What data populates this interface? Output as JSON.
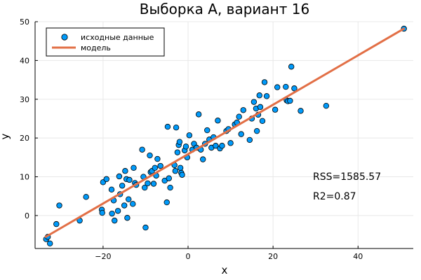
{
  "chart_data": {
    "type": "scatter",
    "title": "Выборка А, вариант 16",
    "xlabel": "x",
    "ylabel": "y",
    "xlim": [
      -36,
      53
    ],
    "ylim": [
      -8.5,
      50
    ],
    "xticks": [
      -20,
      0,
      20,
      40
    ],
    "yticks": [
      0,
      10,
      20,
      30,
      40,
      50
    ],
    "grid": true,
    "legend_position": "top-left",
    "annotations": [
      "RSS=1585.57",
      "R2=0.87"
    ],
    "colors": {
      "points": "#009AFA",
      "line": "#E26F46",
      "grid": "#e8e8e8"
    },
    "series": [
      {
        "name": "исходные данные",
        "kind": "scatter",
        "points": [
          [
            -33.4,
            -6.1
          ],
          [
            -32.5,
            -7.2
          ],
          [
            -33.0,
            -5.5
          ],
          [
            -31.0,
            -2.2
          ],
          [
            -30.3,
            2.6
          ],
          [
            -25.5,
            -1.3
          ],
          [
            -24.0,
            4.8
          ],
          [
            -20.3,
            1.5
          ],
          [
            -20.2,
            0.7
          ],
          [
            -20.0,
            8.6
          ],
          [
            -19.2,
            9.4
          ],
          [
            -18.0,
            6.7
          ],
          [
            -17.9,
            0.5
          ],
          [
            -17.5,
            3.9
          ],
          [
            -17.3,
            -1.3
          ],
          [
            -16.5,
            1.2
          ],
          [
            -16.2,
            10.1
          ],
          [
            -16.0,
            5.5
          ],
          [
            -15.5,
            7.7
          ],
          [
            -15.0,
            2.6
          ],
          [
            -14.8,
            11.5
          ],
          [
            -14.5,
            9.4
          ],
          [
            -14.3,
            -0.6
          ],
          [
            -14.0,
            4.2
          ],
          [
            -13.8,
            9.2
          ],
          [
            -13.0,
            3.0
          ],
          [
            -12.8,
            12.3
          ],
          [
            -12.5,
            8.4
          ],
          [
            -12.2,
            7.9
          ],
          [
            -10.8,
            17.0
          ],
          [
            -10.5,
            10.0
          ],
          [
            -10.2,
            7.2
          ],
          [
            -10.0,
            -3.1
          ],
          [
            -9.5,
            8.3
          ],
          [
            -9.0,
            15.5
          ],
          [
            -8.8,
            11.2
          ],
          [
            -8.5,
            11.5
          ],
          [
            -8.1,
            8.2
          ],
          [
            -7.8,
            12.3
          ],
          [
            -7.5,
            10.3
          ],
          [
            -7.2,
            14.6
          ],
          [
            -6.5,
            12.8
          ],
          [
            -5.5,
            9.0
          ],
          [
            -5.0,
            3.4
          ],
          [
            -4.8,
            22.9
          ],
          [
            -4.5,
            9.6
          ],
          [
            -4.2,
            7.2
          ],
          [
            -3.2,
            13.0
          ],
          [
            -3.0,
            11.5
          ],
          [
            -2.8,
            22.7
          ],
          [
            -2.5,
            16.3
          ],
          [
            -2.2,
            18.2
          ],
          [
            -2.0,
            19.0
          ],
          [
            -1.8,
            12.3
          ],
          [
            -1.6,
            11.0
          ],
          [
            -1.4,
            10.5
          ],
          [
            -0.8,
            16.8
          ],
          [
            -0.5,
            17.8
          ],
          [
            -0.2,
            15.0
          ],
          [
            0.3,
            20.7
          ],
          [
            1.0,
            17.0
          ],
          [
            1.4,
            18.5
          ],
          [
            2.0,
            17.5
          ],
          [
            2.5,
            26.1
          ],
          [
            3.0,
            17.0
          ],
          [
            3.5,
            14.5
          ],
          [
            4.0,
            18.5
          ],
          [
            4.5,
            22.0
          ],
          [
            5.0,
            19.6
          ],
          [
            5.5,
            17.5
          ],
          [
            6.0,
            20.2
          ],
          [
            6.5,
            18.0
          ],
          [
            7.0,
            24.5
          ],
          [
            7.5,
            17.3
          ],
          [
            8.0,
            18.0
          ],
          [
            9.0,
            21.8
          ],
          [
            9.5,
            22.3
          ],
          [
            10.0,
            18.7
          ],
          [
            11.0,
            23.5
          ],
          [
            11.5,
            24.0
          ],
          [
            12.0,
            25.5
          ],
          [
            12.5,
            21.0
          ],
          [
            13.0,
            27.2
          ],
          [
            14.5,
            19.5
          ],
          [
            15.0,
            25.0
          ],
          [
            15.5,
            29.3
          ],
          [
            16.0,
            27.6
          ],
          [
            16.2,
            21.8
          ],
          [
            16.5,
            26.0
          ],
          [
            16.8,
            31.0
          ],
          [
            17.0,
            28.0
          ],
          [
            17.5,
            24.4
          ],
          [
            18.0,
            34.4
          ],
          [
            18.5,
            30.8
          ],
          [
            20.5,
            27.3
          ],
          [
            21.0,
            33.1
          ],
          [
            23.0,
            33.2
          ],
          [
            23.2,
            29.7
          ],
          [
            23.5,
            29.5
          ],
          [
            24.0,
            29.6
          ],
          [
            24.3,
            38.4
          ],
          [
            25.0,
            32.8
          ],
          [
            26.5,
            27.0
          ],
          [
            32.5,
            28.3
          ],
          [
            50.8,
            48.2
          ]
        ]
      },
      {
        "name": "модель",
        "kind": "line",
        "points": [
          [
            -33.5,
            -5.5
          ],
          [
            50.8,
            48.2
          ]
        ]
      }
    ]
  }
}
